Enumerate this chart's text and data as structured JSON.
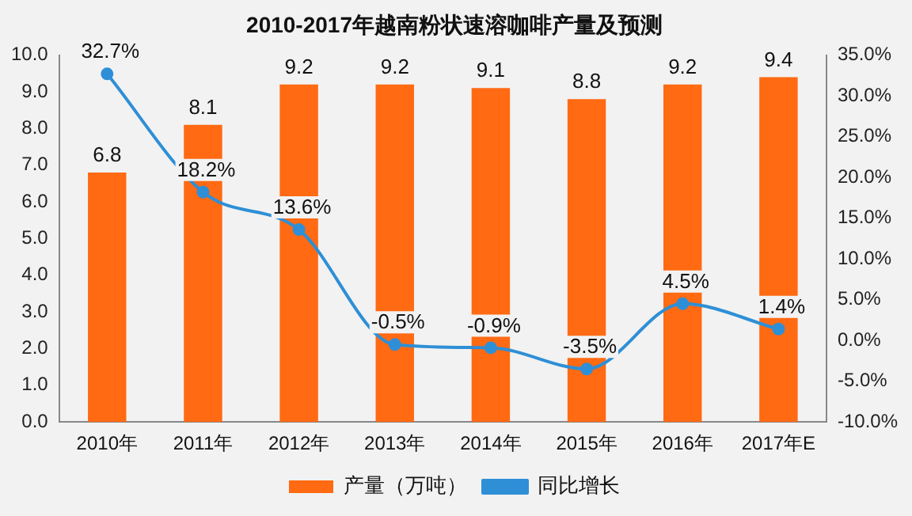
{
  "chart_data": {
    "type": "bar",
    "title": "2010-2017年越南粉状速溶咖啡产量及预测",
    "categories": [
      "2010年",
      "2011年",
      "2012年",
      "2013年",
      "2014年",
      "2015年",
      "2016年",
      "2017年E"
    ],
    "series": [
      {
        "name": "产量（万吨）",
        "color": "#ff6a13",
        "values": [
          6.8,
          8.1,
          9.2,
          9.2,
          9.1,
          8.8,
          9.2,
          9.4
        ]
      },
      {
        "name": "同比增长",
        "type": "line",
        "axis": "y2",
        "color": "#2e8fd6",
        "values": [
          32.7,
          18.2,
          13.6,
          -0.5,
          -0.9,
          -3.5,
          4.5,
          1.4
        ],
        "value_labels": [
          "32.7%",
          "18.2%",
          "13.6%",
          "-0.5%",
          "-0.9%",
          "-3.5%",
          "4.5%",
          "1.4%"
        ]
      }
    ],
    "ylim": [
      0,
      10
    ],
    "yticks": [
      {
        "value": 0,
        "label": "0.0"
      },
      {
        "value": 1,
        "label": "1.0"
      },
      {
        "value": 2,
        "label": "2.0"
      },
      {
        "value": 3,
        "label": "3.0"
      },
      {
        "value": 4,
        "label": "4.0"
      },
      {
        "value": 5,
        "label": "5.0"
      },
      {
        "value": 6,
        "label": "6.0"
      },
      {
        "value": 7,
        "label": "7.0"
      },
      {
        "value": 8,
        "label": "8.0"
      },
      {
        "value": 9,
        "label": "9.0"
      },
      {
        "value": 10,
        "label": "10.0"
      }
    ],
    "y2lim": [
      -10,
      35
    ],
    "y2ticks": [
      {
        "value": -10,
        "label": "-10.0%"
      },
      {
        "value": -5,
        "label": "-5.0%"
      },
      {
        "value": 0,
        "label": "0.0%"
      },
      {
        "value": 5,
        "label": "5.0%"
      },
      {
        "value": 10,
        "label": "10.0%"
      },
      {
        "value": 15,
        "label": "15.0%"
      },
      {
        "value": 20,
        "label": "20.0%"
      },
      {
        "value": 25,
        "label": "25.0%"
      },
      {
        "value": 30,
        "label": "30.0%"
      },
      {
        "value": 35,
        "label": "35.0%"
      }
    ],
    "data_labels": true,
    "legend": "bottom",
    "grid": false,
    "marker": "circle"
  }
}
